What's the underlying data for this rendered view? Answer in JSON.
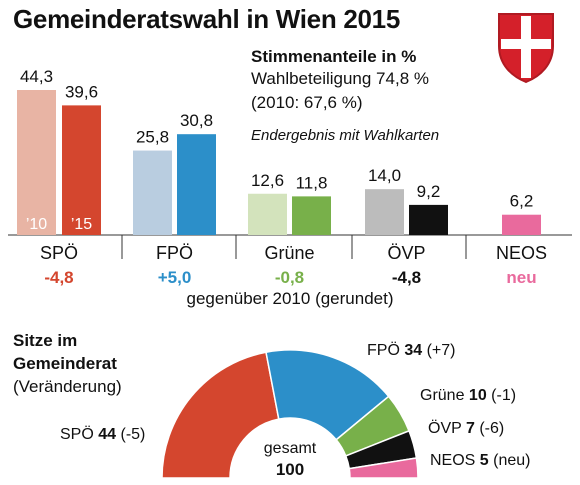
{
  "title": "Gemeinderatswahl in Wien 2015",
  "subtitle": {
    "heading": "Stimmenanteile in %",
    "turnout": "Wahlbeteiligung 74,8 %",
    "turnout_2010": "(2010: 67,6 %)",
    "note": "Endergebnis mit Wahlkarten"
  },
  "year_labels": {
    "y2010": "’10",
    "y2015": "’15"
  },
  "change_note": "gegenüber 2010 (gerundet)",
  "colors": {
    "SPÖ": {
      "y2010": "#e8b4a4",
      "y2015": "#d4462e",
      "change": "#d4462e"
    },
    "FPÖ": {
      "y2010": "#b9cde0",
      "y2015": "#2c8fc9",
      "change": "#2c8fc9"
    },
    "Grüne": {
      "y2010": "#d3e3bc",
      "y2015": "#78b04a",
      "change": "#78b04a"
    },
    "ÖVP": {
      "y2010": "#bcbcbc",
      "y2015": "#111111",
      "change": "#111111"
    },
    "NEOS": {
      "y2015": "#e96a9d",
      "change": "#e96a9d"
    }
  },
  "chart_data": [
    {
      "type": "bar",
      "title": "Stimmenanteile in %",
      "categories": [
        "SPÖ",
        "FPÖ",
        "Grüne",
        "ÖVP",
        "NEOS"
      ],
      "series": [
        {
          "name": "’10",
          "values": [
            44.3,
            25.8,
            12.6,
            14.0,
            null
          ],
          "labels": [
            "44,3",
            "25,8",
            "12,6",
            "14,0",
            ""
          ]
        },
        {
          "name": "’15",
          "values": [
            39.6,
            30.8,
            11.8,
            9.2,
            6.2
          ],
          "labels": [
            "39,6",
            "30,8",
            "11,8",
            "9,2",
            "6,2"
          ]
        }
      ],
      "change": [
        "-4,8",
        "+5,0",
        "-0,8",
        "-4,8",
        "neu"
      ],
      "ylim": [
        0,
        44.3
      ],
      "grid": false
    },
    {
      "type": "pie",
      "title": "Sitze im Gemeinderat",
      "subtitle": "(Veränderung)",
      "total_label": "gesamt",
      "total": 100,
      "slices": [
        {
          "party": "SPÖ",
          "seats": 44,
          "change": "(-5)",
          "color": "#d4462e"
        },
        {
          "party": "FPÖ",
          "seats": 34,
          "change": "(+7)",
          "color": "#2c8fc9"
        },
        {
          "party": "Grüne",
          "seats": 10,
          "change": "(-1)",
          "color": "#78b04a"
        },
        {
          "party": "ÖVP",
          "seats": 7,
          "change": "(-6)",
          "color": "#111111"
        },
        {
          "party": "NEOS",
          "seats": 5,
          "change": "(neu)",
          "color": "#e96a9d"
        }
      ]
    }
  ]
}
